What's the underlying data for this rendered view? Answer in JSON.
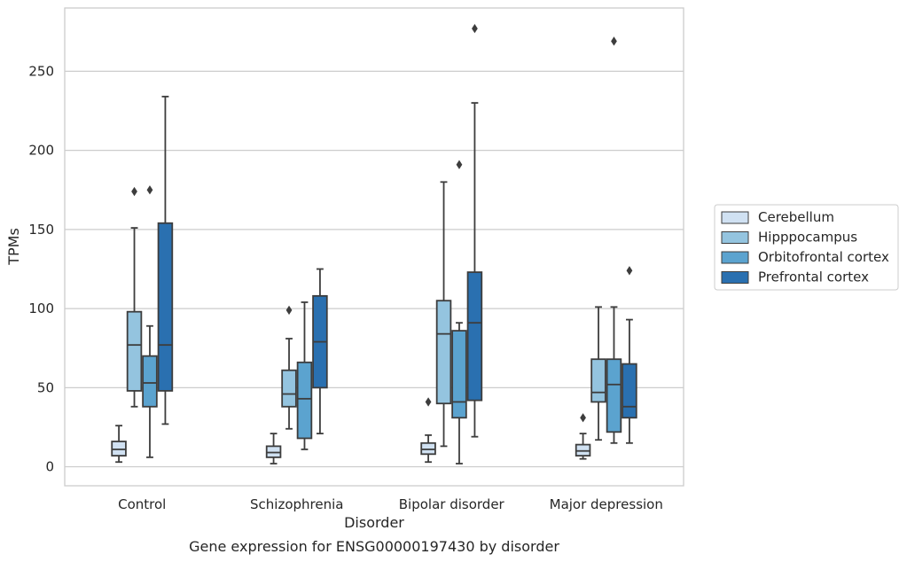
{
  "caption": "Gene expression for ENSG00000197430 by disorder",
  "chart_data": {
    "type": "box",
    "xlabel": "Disorder",
    "ylabel": "TPMs",
    "ylim": [
      -12,
      290
    ],
    "yticks": [
      0,
      50,
      100,
      150,
      200,
      250
    ],
    "grid": "horizontal",
    "legend_position": "center-right",
    "categories": [
      "Control",
      "Schizophrenia",
      "Bipolar disorder",
      "Major depression"
    ],
    "series": [
      {
        "name": "Cerebellum",
        "color": "#d0e1f2",
        "boxes": [
          {
            "whislo": 3,
            "q1": 7,
            "med": 11,
            "q3": 16,
            "whishi": 26,
            "fliers": []
          },
          {
            "whislo": 2,
            "q1": 6,
            "med": 9,
            "q3": 13,
            "whishi": 21,
            "fliers": []
          },
          {
            "whislo": 3,
            "q1": 8,
            "med": 11,
            "q3": 15,
            "whishi": 20,
            "fliers": [
              41
            ]
          },
          {
            "whislo": 5,
            "q1": 7,
            "med": 10,
            "q3": 14,
            "whishi": 21,
            "fliers": [
              31
            ]
          }
        ]
      },
      {
        "name": "Hipppocampus",
        "color": "#94c4df",
        "boxes": [
          {
            "whislo": 38,
            "q1": 48,
            "med": 77,
            "q3": 98,
            "whishi": 151,
            "fliers": [
              174
            ]
          },
          {
            "whislo": 24,
            "q1": 38,
            "med": 46,
            "q3": 61,
            "whishi": 81,
            "fliers": [
              99
            ]
          },
          {
            "whislo": 13,
            "q1": 40,
            "med": 84,
            "q3": 105,
            "whishi": 180,
            "fliers": []
          },
          {
            "whislo": 17,
            "q1": 41,
            "med": 47,
            "q3": 68,
            "whishi": 101,
            "fliers": []
          }
        ]
      },
      {
        "name": "Orbitofrontal cortex",
        "color": "#5ba3cf",
        "boxes": [
          {
            "whislo": 6,
            "q1": 38,
            "med": 53,
            "q3": 70,
            "whishi": 89,
            "fliers": [
              175
            ]
          },
          {
            "whislo": 11,
            "q1": 18,
            "med": 43,
            "q3": 66,
            "whishi": 104,
            "fliers": []
          },
          {
            "whislo": 2,
            "q1": 31,
            "med": 41,
            "q3": 86,
            "whishi": 91,
            "fliers": [
              191
            ]
          },
          {
            "whislo": 15,
            "q1": 22,
            "med": 52,
            "q3": 68,
            "whishi": 101,
            "fliers": [
              269
            ]
          }
        ]
      },
      {
        "name": "Prefrontal cortex",
        "color": "#2a70b0",
        "boxes": [
          {
            "whislo": 27,
            "q1": 48,
            "med": 77,
            "q3": 154,
            "whishi": 234,
            "fliers": []
          },
          {
            "whislo": 21,
            "q1": 50,
            "med": 79,
            "q3": 108,
            "whishi": 125,
            "fliers": []
          },
          {
            "whislo": 19,
            "q1": 42,
            "med": 91,
            "q3": 123,
            "whishi": 230,
            "fliers": [
              277
            ]
          },
          {
            "whislo": 15,
            "q1": 31,
            "med": 38,
            "q3": 65,
            "whishi": 93,
            "fliers": [
              124
            ]
          }
        ]
      }
    ]
  }
}
